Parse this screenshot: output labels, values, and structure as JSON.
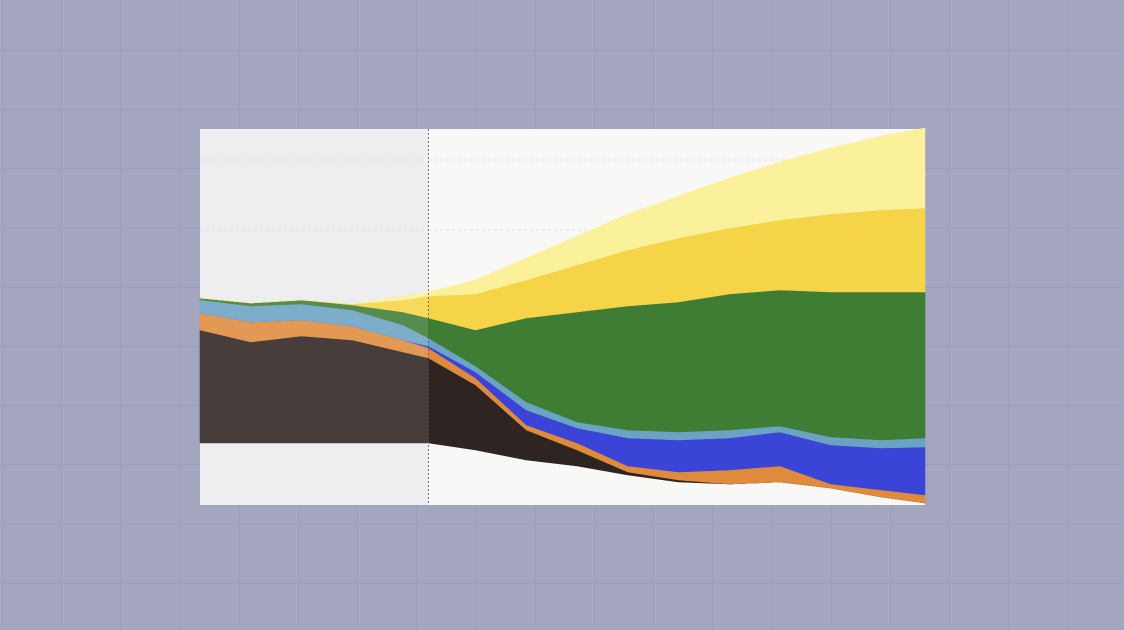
{
  "chart_data": {
    "type": "stacked-area",
    "x": [
      0,
      7,
      14,
      21,
      28,
      31.5,
      38,
      45,
      52,
      59,
      66,
      73,
      80,
      87,
      94,
      100
    ],
    "xlim": [
      0,
      100
    ],
    "ylim": [
      0,
      376
    ],
    "divider_x": 31.5,
    "baseline": [
      62,
      62,
      62,
      62,
      62,
      62,
      55,
      45,
      39,
      30,
      23,
      21,
      23,
      17,
      8,
      2
    ],
    "series": [
      {
        "color": "#2e2422",
        "values": [
          113,
          101,
          107,
          103,
          91,
          85,
          65,
          30,
          16,
          3,
          2,
          0,
          0,
          0,
          0,
          0
        ]
      },
      {
        "color": "#e08a3c",
        "values": [
          17,
          20,
          16,
          14,
          12,
          10,
          7,
          5,
          7,
          6,
          8,
          14,
          16,
          4,
          7,
          8
        ]
      },
      {
        "color": "#3a44d6",
        "values": [
          0,
          0,
          0,
          0,
          0,
          2,
          6,
          15,
          15,
          28,
          32,
          32,
          34,
          39,
          42,
          48
        ]
      },
      {
        "color": "#6aa3c4",
        "values": [
          13,
          16,
          16,
          16,
          15,
          8,
          6,
          8,
          6,
          8,
          8,
          8,
          6,
          8,
          8,
          9
        ]
      },
      {
        "color": "#3f7d35",
        "values": [
          2,
          3,
          4,
          5,
          13,
          20,
          36,
          84,
          110,
          124,
          130,
          136,
          136,
          145,
          148,
          146
        ]
      },
      {
        "color": "#f5d547",
        "values": [
          0,
          0,
          0,
          1,
          12,
          22,
          36,
          38,
          47,
          56,
          64,
          66,
          70,
          78,
          82,
          84
        ]
      },
      {
        "color": "#fbf19a",
        "values": [
          0,
          0,
          0,
          0,
          4,
          4,
          14,
          22,
          29,
          36,
          42,
          50,
          58,
          66,
          74,
          80
        ]
      }
    ]
  }
}
